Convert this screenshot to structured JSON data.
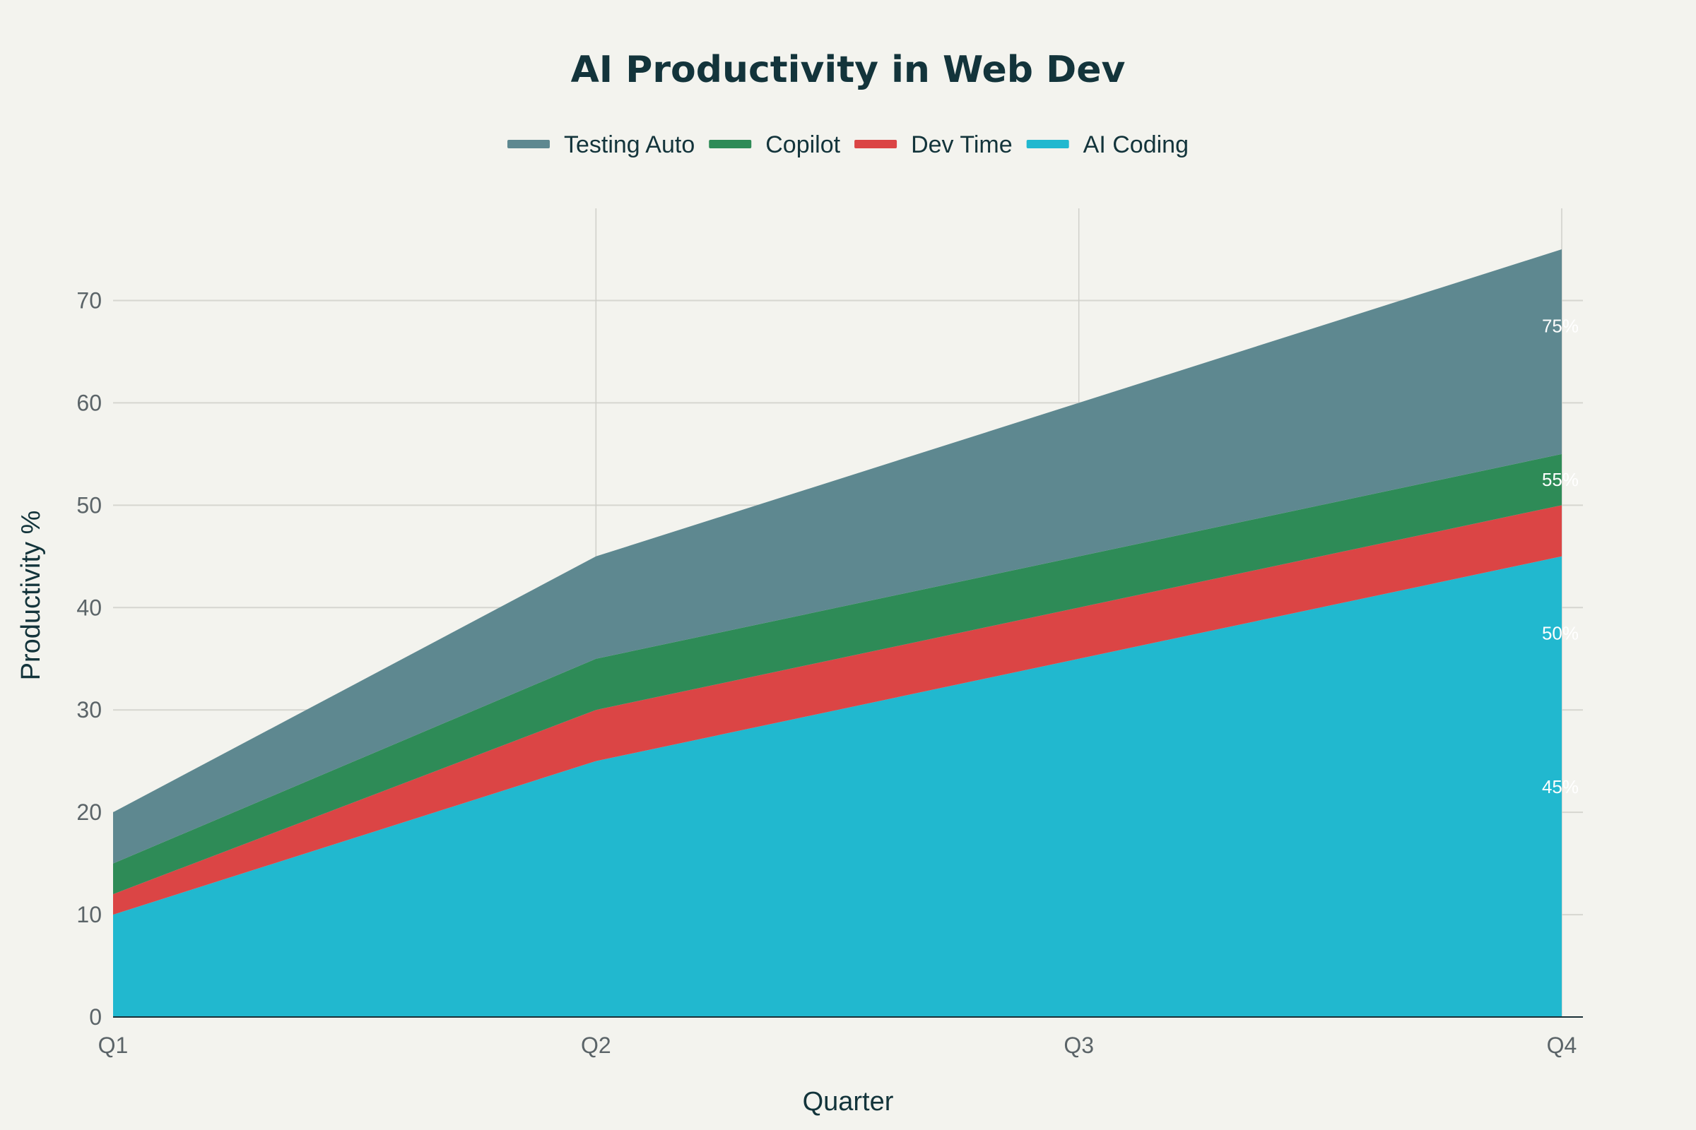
{
  "chart_data": {
    "type": "area",
    "stacked": true,
    "title": "AI Productivity in Web Dev",
    "xlabel": "Quarter",
    "ylabel": "Productivity %",
    "categories": [
      "Q1",
      "Q2",
      "Q3",
      "Q4"
    ],
    "ylim": [
      0,
      79
    ],
    "yticks": [
      0,
      10,
      20,
      30,
      40,
      50,
      60,
      70
    ],
    "grid": true,
    "legend_position": "top-center",
    "series": [
      {
        "name": "AI Coding",
        "values": [
          10,
          25,
          35,
          45
        ],
        "color": "#21b8cf"
      },
      {
        "name": "Dev Time",
        "values": [
          2,
          5,
          5,
          5
        ],
        "color": "#db4545"
      },
      {
        "name": "Copilot",
        "values": [
          3,
          5,
          5,
          5
        ],
        "color": "#2e8b57"
      },
      {
        "name": "Testing Auto",
        "values": [
          5,
          10,
          15,
          20
        ],
        "color": "#5e8890"
      }
    ],
    "legend_order": [
      "Testing Auto",
      "Copilot",
      "Dev Time",
      "AI Coding"
    ],
    "annotations": [
      {
        "text": "75%",
        "x": "Q4",
        "y": 67.5
      },
      {
        "text": "55%",
        "x": "Q4",
        "y": 52.5
      },
      {
        "text": "50%",
        "x": "Q4",
        "y": 37.5
      },
      {
        "text": "45%",
        "x": "Q4",
        "y": 22.5
      }
    ]
  }
}
